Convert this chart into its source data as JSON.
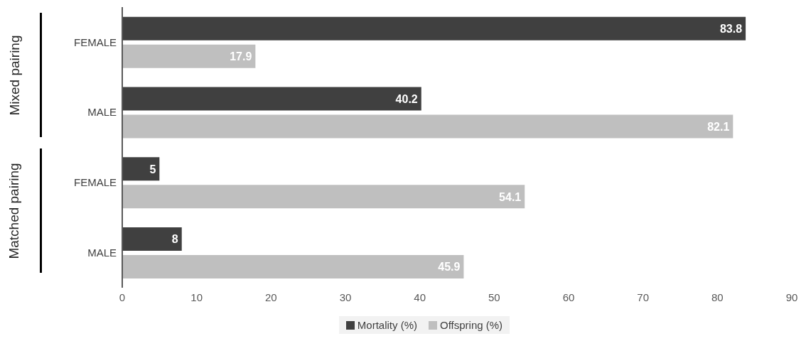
{
  "chart_data": {
    "type": "bar",
    "orientation": "horizontal",
    "categories": [
      "FEMALE",
      "MALE",
      "FEMALE",
      "MALE"
    ],
    "series": [
      {
        "name": "Mortality (%)",
        "color": "#404040",
        "values": [
          83.8,
          40.2,
          5,
          8
        ]
      },
      {
        "name": "Offspring (%)",
        "color": "#bfbfbf",
        "values": [
          17.9,
          82.1,
          54.1,
          45.9
        ]
      }
    ],
    "xlim": [
      0,
      90
    ],
    "xticks": [
      0,
      10,
      20,
      30,
      40,
      50,
      60,
      70,
      80,
      90
    ],
    "data_labels": true,
    "legend": "bottom",
    "grid": false,
    "annotations": [
      "Mixed pairing",
      "Matched pairing"
    ]
  }
}
